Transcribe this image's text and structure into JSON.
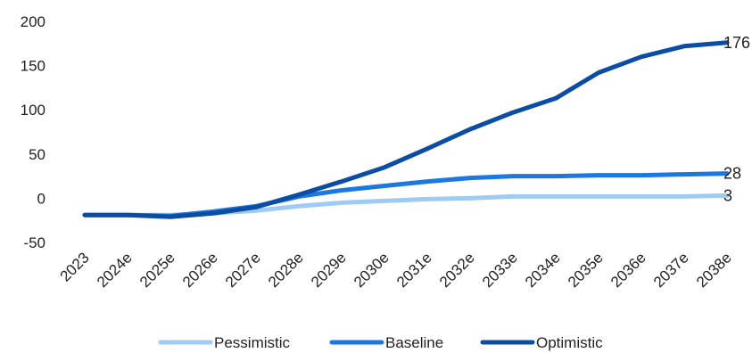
{
  "chart_data": {
    "type": "line",
    "title": "",
    "xlabel": "",
    "ylabel": "",
    "x": [
      "2023",
      "2024e",
      "2025e",
      "2026e",
      "2027e",
      "2028e",
      "2029e",
      "2030e",
      "2031e",
      "2032e",
      "2033e",
      "2034e",
      "2035e",
      "2036e",
      "2037e",
      "2038e"
    ],
    "ylim": [
      -50,
      200
    ],
    "yticks": [
      -50,
      0,
      50,
      100,
      150,
      200
    ],
    "grid": false,
    "legend_position": "bottom",
    "series": [
      {
        "name": "Pessimistic",
        "color": "#9ecbf4",
        "values": [
          -19,
          -19,
          -19,
          -17,
          -14,
          -9,
          -5,
          -3,
          -1,
          0,
          2,
          2,
          2,
          2,
          2,
          3
        ],
        "end_label": "3"
      },
      {
        "name": "Baseline",
        "color": "#1a78e0",
        "values": [
          -19,
          -19,
          -20,
          -15,
          -9,
          2,
          9,
          14,
          19,
          23,
          25,
          25,
          26,
          26,
          27,
          28
        ],
        "end_label": "28"
      },
      {
        "name": "Optimistic",
        "color": "#0a4da3",
        "values": [
          -19,
          -19,
          -21,
          -17,
          -10,
          4,
          19,
          35,
          56,
          78,
          97,
          113,
          142,
          160,
          172,
          176
        ],
        "end_label": "176"
      }
    ]
  }
}
